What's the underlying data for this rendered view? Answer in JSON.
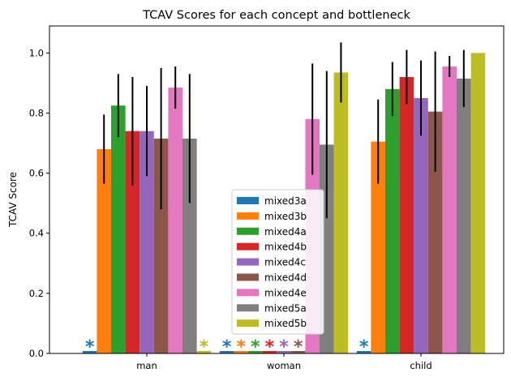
{
  "chart_data": {
    "type": "bar",
    "title": "TCAV Scores for each concept and bottleneck",
    "xlabel": "",
    "ylabel": "TCAV Score",
    "ylim": [
      0,
      1.09
    ],
    "yticks": [
      "0.0",
      "0.2",
      "0.4",
      "0.6",
      "0.8",
      "1.0"
    ],
    "categories": [
      "man",
      "woman",
      "child"
    ],
    "grid": false,
    "legend_position": "lower-center",
    "series": [
      {
        "name": "mixed3a",
        "color": "#1f77b4",
        "values": [
          0.0,
          0.0,
          0.0
        ],
        "errors": [
          0,
          0,
          0
        ],
        "star": [
          true,
          true,
          true
        ]
      },
      {
        "name": "mixed3b",
        "color": "#ff7f0e",
        "values": [
          0.68,
          0.0,
          0.705
        ],
        "errors": [
          0.115,
          0,
          0.14
        ],
        "star": [
          false,
          true,
          false
        ]
      },
      {
        "name": "mixed4a",
        "color": "#2ca02c",
        "values": [
          0.825,
          0.0,
          0.88
        ],
        "errors": [
          0.105,
          0,
          0.09
        ],
        "star": [
          false,
          true,
          false
        ]
      },
      {
        "name": "mixed4b",
        "color": "#d62728",
        "values": [
          0.74,
          0.0,
          0.92
        ],
        "errors": [
          0.18,
          0,
          0.09
        ],
        "star": [
          false,
          true,
          false
        ]
      },
      {
        "name": "mixed4c",
        "color": "#9467bd",
        "values": [
          0.74,
          0.0,
          0.85
        ],
        "errors": [
          0.15,
          0,
          0.125
        ],
        "star": [
          false,
          true,
          false
        ]
      },
      {
        "name": "mixed4d",
        "color": "#8c564b",
        "values": [
          0.715,
          0.0,
          0.805
        ],
        "errors": [
          0.235,
          0,
          0.2
        ],
        "star": [
          false,
          true,
          false
        ]
      },
      {
        "name": "mixed4e",
        "color": "#e377c2",
        "values": [
          0.885,
          0.78,
          0.955
        ],
        "errors": [
          0.07,
          0.185,
          0.035
        ],
        "star": [
          false,
          false,
          false
        ]
      },
      {
        "name": "mixed5a",
        "color": "#7f7f7f",
        "values": [
          0.715,
          0.695,
          0.915
        ],
        "errors": [
          0.215,
          0.245,
          0.095
        ],
        "star": [
          false,
          false,
          false
        ]
      },
      {
        "name": "mixed5b",
        "color": "#bcbd22",
        "values": [
          0.0,
          0.935,
          1.0
        ],
        "errors": [
          0,
          0.1,
          0
        ],
        "star": [
          true,
          false,
          false
        ]
      }
    ],
    "star_symbol": "*"
  }
}
